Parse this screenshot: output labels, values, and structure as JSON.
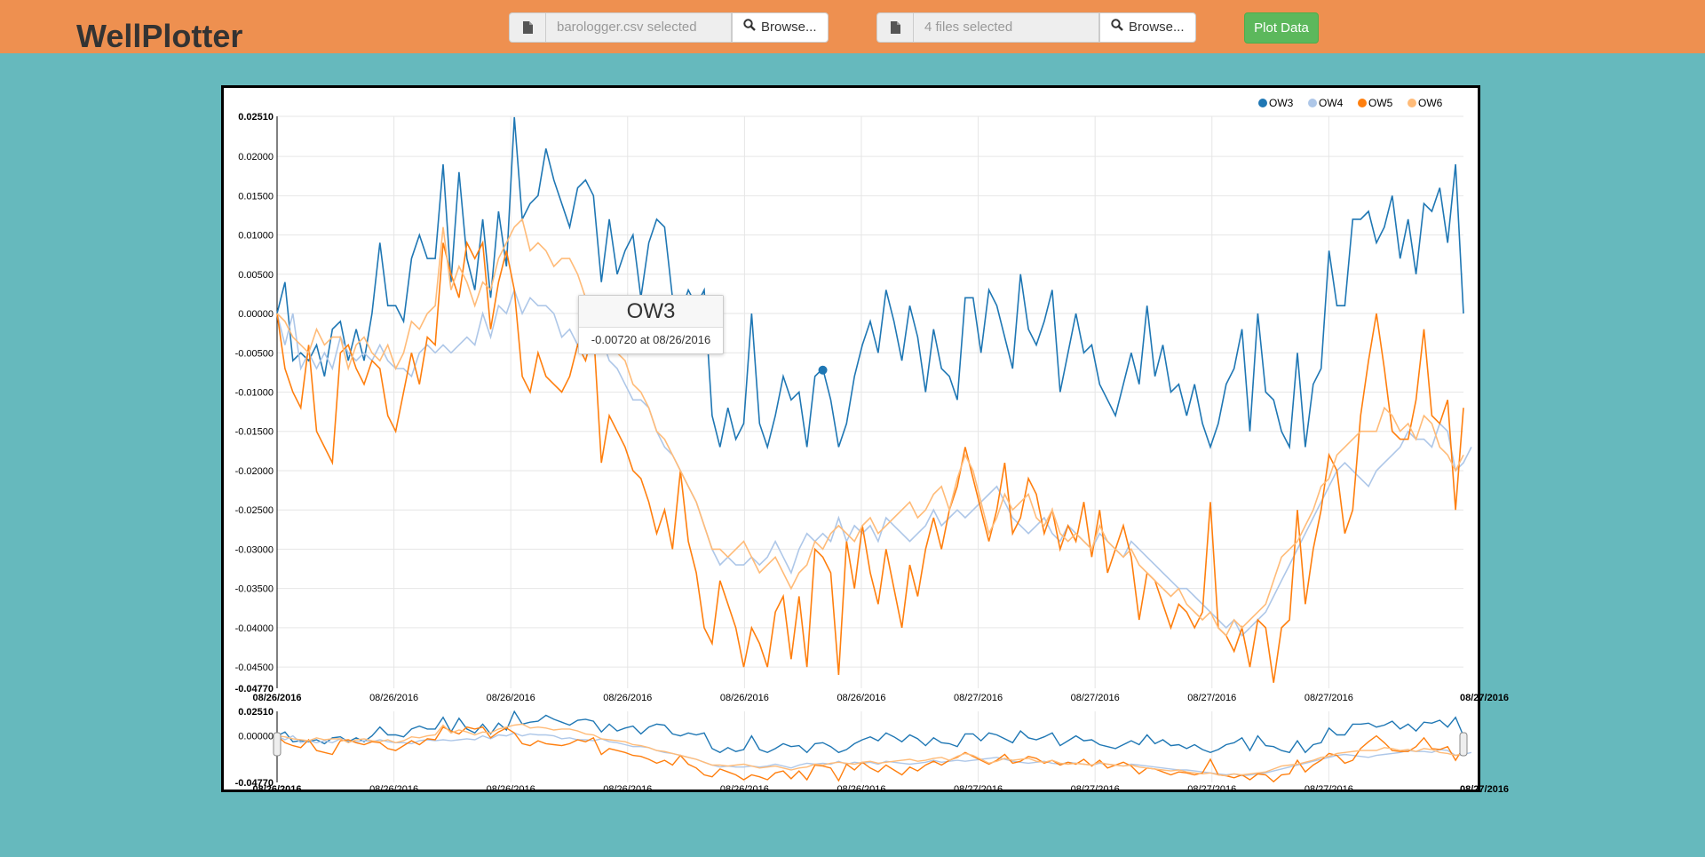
{
  "header": {
    "brand": "WellPlotter",
    "baro_file_text": "barologger.csv selected",
    "well_files_text": "4 files selected",
    "browse_label": "Browse...",
    "plot_label": "Plot Data",
    "file_icon": "file-icon",
    "search_icon": "search-icon"
  },
  "colors": {
    "OW3": "#1f77b4",
    "OW4": "#aec7e8",
    "OW5": "#ff7f0e",
    "OW6": "#ffbb78",
    "navbar": "#ee9050",
    "background": "#66b9bd",
    "plot_button": "#5cb85c"
  },
  "tooltip": {
    "series": "OW3",
    "text": "-0.00720 at 08/26/2016"
  },
  "chart_data": {
    "type": "line",
    "legend": [
      "OW3",
      "OW4",
      "OW5",
      "OW6"
    ],
    "legend_position": "top-right",
    "grid": true,
    "ylim": [
      -0.0477,
      0.0251
    ],
    "y_min_label": "-0.04770",
    "y_max_label": "0.02510",
    "yticks": [
      "0.02000",
      "0.01500",
      "0.01000",
      "0.00500",
      "0.00000",
      "-0.00500",
      "-0.01000",
      "-0.01500",
      "-0.02000",
      "-0.02500",
      "-0.03000",
      "-0.03500",
      "-0.04000",
      "-0.04500"
    ],
    "xticks": [
      "08/26/2016",
      "08/26/2016",
      "08/26/2016",
      "08/26/2016",
      "08/26/2016",
      "08/27/2016",
      "08/27/2016",
      "08/27/2016",
      "08/27/2016"
    ],
    "x_start_label": "08/26/2016",
    "x_end_label": "08/27/2016",
    "navigator_y_labels": [
      "0.02510",
      "0.00000",
      "-0.04770"
    ],
    "series": [
      {
        "name": "OW3",
        "values": [
          0.0,
          0.004,
          -0.006,
          -0.005,
          -0.006,
          -0.004,
          -0.008,
          -0.002,
          -0.001,
          -0.006,
          -0.002,
          -0.006,
          0.0,
          0.009,
          0.001,
          0.001,
          -0.001,
          0.007,
          0.01,
          0.007,
          0.007,
          0.019,
          0.004,
          0.018,
          0.007,
          0.003,
          0.012,
          0.002,
          0.013,
          0.006,
          0.025,
          0.012,
          0.014,
          0.015,
          0.021,
          0.017,
          0.014,
          0.011,
          0.016,
          0.017,
          0.015,
          0.004,
          0.012,
          0.005,
          0.008,
          0.01,
          0.002,
          0.009,
          0.012,
          0.011,
          0.002,
          0.0,
          0.003,
          0.001,
          0.003,
          -0.013,
          -0.017,
          -0.012,
          -0.016,
          -0.014,
          0.0,
          -0.014,
          -0.017,
          -0.013,
          -0.008,
          -0.011,
          -0.01,
          -0.017,
          -0.008,
          -0.007,
          -0.011,
          -0.017,
          -0.014,
          -0.008,
          -0.004,
          -0.001,
          -0.005,
          0.003,
          -0.001,
          -0.006,
          0.001,
          -0.003,
          -0.01,
          -0.002,
          -0.007,
          -0.008,
          -0.011,
          0.002,
          0.002,
          -0.005,
          0.003,
          0.001,
          -0.003,
          -0.007,
          0.005,
          -0.002,
          -0.004,
          -0.001,
          0.003,
          -0.01,
          -0.005,
          0.0,
          -0.005,
          -0.004,
          -0.009,
          -0.011,
          -0.013,
          -0.009,
          -0.005,
          -0.009,
          0.001,
          -0.008,
          -0.004,
          -0.01,
          -0.009,
          -0.013,
          -0.009,
          -0.014,
          -0.017,
          -0.014,
          -0.009,
          -0.007,
          -0.002,
          -0.015,
          0.0,
          -0.01,
          -0.011,
          -0.015,
          -0.017,
          -0.005,
          -0.017,
          -0.009,
          -0.007,
          0.008,
          0.001,
          0.001,
          0.012,
          0.012,
          0.013,
          0.009,
          0.011,
          0.015,
          0.007,
          0.012,
          0.005,
          0.014,
          0.013,
          0.016,
          0.009,
          0.019,
          0.0
        ]
      },
      {
        "name": "OW4",
        "values": [
          0.0,
          -0.004,
          0.0,
          -0.007,
          -0.005,
          -0.007,
          -0.005,
          -0.007,
          -0.003,
          -0.005,
          -0.006,
          -0.005,
          -0.006,
          -0.004,
          -0.006,
          -0.007,
          -0.007,
          -0.008,
          -0.005,
          -0.004,
          -0.005,
          -0.004,
          -0.005,
          -0.004,
          -0.003,
          -0.004,
          0.0,
          -0.003,
          0.001,
          0.0,
          0.003,
          0.0,
          0.002,
          0.001,
          0.001,
          0.0,
          -0.003,
          -0.002,
          -0.004,
          -0.004,
          -0.005,
          -0.003,
          -0.006,
          -0.007,
          -0.009,
          -0.011,
          -0.011,
          -0.012,
          -0.015,
          -0.017,
          -0.018,
          -0.02,
          -0.022,
          -0.024,
          -0.027,
          -0.03,
          -0.032,
          -0.031,
          -0.032,
          -0.032,
          -0.031,
          -0.032,
          -0.031,
          -0.029,
          -0.031,
          -0.033,
          -0.03,
          -0.028,
          -0.029,
          -0.028,
          -0.029,
          -0.026,
          -0.029,
          -0.027,
          -0.028,
          -0.027,
          -0.029,
          -0.026,
          -0.027,
          -0.028,
          -0.029,
          -0.028,
          -0.027,
          -0.025,
          -0.027,
          -0.026,
          -0.025,
          -0.026,
          -0.025,
          -0.024,
          -0.023,
          -0.022,
          -0.024,
          -0.026,
          -0.027,
          -0.028,
          -0.027,
          -0.026,
          -0.028,
          -0.029,
          -0.027,
          -0.028,
          -0.029,
          -0.03,
          -0.028,
          -0.029,
          -0.03,
          -0.031,
          -0.029,
          -0.03,
          -0.031,
          -0.032,
          -0.033,
          -0.034,
          -0.035,
          -0.035,
          -0.036,
          -0.037,
          -0.038,
          -0.039,
          -0.04,
          -0.039,
          -0.041,
          -0.04,
          -0.039,
          -0.038,
          -0.036,
          -0.034,
          -0.032,
          -0.03,
          -0.028,
          -0.026,
          -0.024,
          -0.022,
          -0.02,
          -0.019,
          -0.02,
          -0.021,
          -0.022,
          -0.02,
          -0.019,
          -0.018,
          -0.017,
          -0.015,
          -0.016,
          -0.016,
          -0.017,
          -0.014,
          -0.015,
          -0.02,
          -0.019,
          -0.017
        ]
      },
      {
        "name": "OW5",
        "values": [
          -0.0,
          -0.007,
          -0.01,
          -0.012,
          -0.004,
          -0.015,
          -0.017,
          -0.019,
          -0.005,
          -0.004,
          -0.007,
          -0.009,
          -0.006,
          -0.007,
          -0.013,
          -0.015,
          -0.01,
          -0.005,
          -0.009,
          -0.003,
          -0.004,
          0.009,
          0.005,
          0.002,
          0.009,
          0.007,
          0.009,
          -0.002,
          0.004,
          0.008,
          0.003,
          -0.008,
          -0.01,
          -0.005,
          -0.008,
          -0.009,
          -0.01,
          -0.008,
          -0.004,
          -0.006,
          -0.002,
          -0.019,
          -0.013,
          -0.015,
          -0.017,
          -0.02,
          -0.021,
          -0.024,
          -0.028,
          -0.025,
          -0.03,
          -0.02,
          -0.029,
          -0.033,
          -0.04,
          -0.042,
          -0.034,
          -0.037,
          -0.04,
          -0.045,
          -0.04,
          -0.042,
          -0.045,
          -0.038,
          -0.036,
          -0.044,
          -0.036,
          -0.045,
          -0.03,
          -0.031,
          -0.033,
          -0.046,
          -0.029,
          -0.035,
          -0.027,
          -0.033,
          -0.037,
          -0.03,
          -0.035,
          -0.04,
          -0.032,
          -0.036,
          -0.03,
          -0.026,
          -0.03,
          -0.025,
          -0.022,
          -0.017,
          -0.021,
          -0.025,
          -0.029,
          -0.025,
          -0.019,
          -0.028,
          -0.026,
          -0.021,
          -0.023,
          -0.028,
          -0.025,
          -0.03,
          -0.027,
          -0.029,
          -0.024,
          -0.031,
          -0.025,
          -0.033,
          -0.03,
          -0.027,
          -0.031,
          -0.039,
          -0.033,
          -0.034,
          -0.037,
          -0.04,
          -0.037,
          -0.038,
          -0.04,
          -0.038,
          -0.024,
          -0.04,
          -0.041,
          -0.043,
          -0.04,
          -0.045,
          -0.039,
          -0.04,
          -0.047,
          -0.04,
          -0.039,
          -0.025,
          -0.037,
          -0.03,
          -0.025,
          -0.018,
          -0.02,
          -0.028,
          -0.025,
          -0.013,
          -0.006,
          0.0,
          -0.007,
          -0.015,
          -0.016,
          -0.016,
          -0.011,
          -0.002,
          -0.013,
          -0.014,
          -0.011,
          -0.025,
          -0.012
        ]
      },
      {
        "name": "OW6",
        "values": [
          -0.0,
          -0.001,
          -0.003,
          -0.004,
          -0.005,
          -0.002,
          -0.004,
          -0.003,
          -0.003,
          -0.007,
          -0.004,
          -0.003,
          -0.005,
          -0.006,
          -0.004,
          -0.007,
          -0.005,
          -0.001,
          -0.002,
          0.0,
          0.001,
          0.011,
          0.003,
          0.006,
          0.004,
          0.001,
          0.004,
          0.003,
          0.007,
          0.009,
          0.011,
          0.012,
          0.008,
          0.009,
          0.008,
          0.006,
          0.007,
          0.007,
          0.005,
          0.002,
          0.001,
          -0.003,
          -0.004,
          -0.005,
          -0.006,
          -0.009,
          -0.01,
          -0.012,
          -0.015,
          -0.016,
          -0.018,
          -0.02,
          -0.022,
          -0.024,
          -0.027,
          -0.03,
          -0.03,
          -0.031,
          -0.03,
          -0.029,
          -0.031,
          -0.033,
          -0.032,
          -0.031,
          -0.033,
          -0.035,
          -0.033,
          -0.032,
          -0.029,
          -0.03,
          -0.028,
          -0.027,
          -0.028,
          -0.029,
          -0.027,
          -0.026,
          -0.028,
          -0.027,
          -0.026,
          -0.025,
          -0.024,
          -0.026,
          -0.025,
          -0.023,
          -0.022,
          -0.025,
          -0.021,
          -0.018,
          -0.02,
          -0.024,
          -0.028,
          -0.026,
          -0.023,
          -0.025,
          -0.024,
          -0.023,
          -0.026,
          -0.027,
          -0.025,
          -0.028,
          -0.029,
          -0.028,
          -0.029,
          -0.03,
          -0.027,
          -0.029,
          -0.03,
          -0.031,
          -0.03,
          -0.032,
          -0.033,
          -0.034,
          -0.035,
          -0.036,
          -0.035,
          -0.037,
          -0.038,
          -0.039,
          -0.038,
          -0.04,
          -0.041,
          -0.039,
          -0.04,
          -0.039,
          -0.038,
          -0.037,
          -0.034,
          -0.031,
          -0.03,
          -0.029,
          -0.027,
          -0.025,
          -0.022,
          -0.021,
          -0.018,
          -0.017,
          -0.016,
          -0.015,
          -0.015,
          -0.015,
          -0.012,
          -0.013,
          -0.015,
          -0.014,
          -0.016,
          -0.013,
          -0.014,
          -0.017,
          -0.018,
          -0.02,
          -0.018
        ]
      }
    ]
  }
}
